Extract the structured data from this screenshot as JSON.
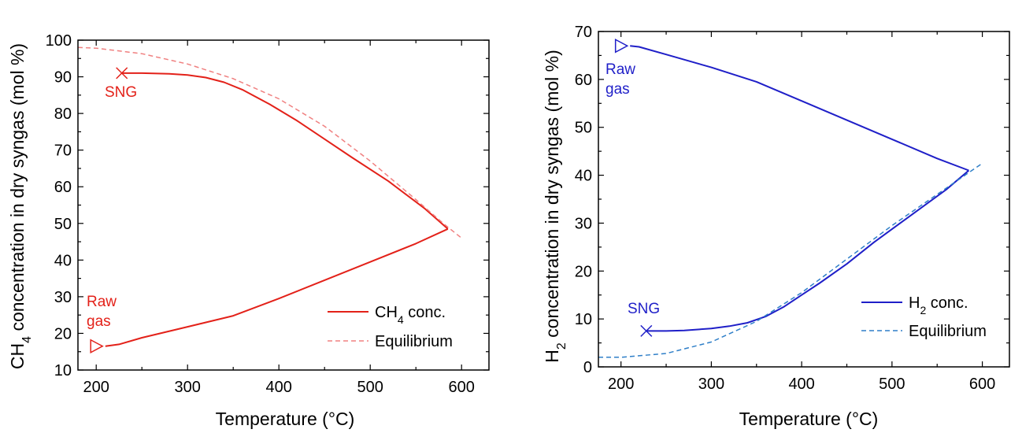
{
  "chart_data": [
    {
      "type": "line",
      "xlabel": "Temperature (°C)",
      "ylabel_main": "CH",
      "ylabel_sub": "4",
      "ylabel_rest": " concentration in dry syngas (mol %)",
      "xlim": [
        180,
        630
      ],
      "ylim": [
        10,
        100
      ],
      "xticks": [
        200,
        300,
        400,
        500,
        600
      ],
      "yticks": [
        10,
        20,
        30,
        40,
        50,
        60,
        70,
        80,
        90,
        100
      ],
      "xtick_labels": [
        "200",
        "300",
        "400",
        "500",
        "600"
      ],
      "ytick_labels": [
        "10",
        "20",
        "30",
        "40",
        "50",
        "60",
        "70",
        "80",
        "90",
        "100"
      ],
      "color": "#e32119",
      "legend_position": "bottom-right",
      "legend": [
        {
          "main": "CH",
          "sub": "4",
          "rest": " conc."
        },
        {
          "main": "Equilibrium",
          "sub": "",
          "rest": ""
        }
      ],
      "series": [
        {
          "style": "solid",
          "x": [
            210,
            225,
            250,
            300,
            350,
            400,
            450,
            500,
            550,
            585
          ],
          "y": [
            16.5,
            17,
            18.8,
            21.8,
            24.8,
            29.5,
            34.5,
            39.5,
            44.5,
            48.5
          ]
        },
        {
          "style": "solid",
          "x": [
            585,
            560,
            520,
            480,
            450,
            420,
            390,
            360,
            340,
            320,
            300,
            280,
            250,
            228
          ],
          "y": [
            48.5,
            54,
            61.5,
            68,
            73,
            78,
            82.5,
            86.5,
            88.5,
            89.8,
            90.5,
            90.8,
            91,
            91
          ]
        },
        {
          "style": "dashed",
          "x": [
            180,
            200,
            250,
            300,
            350,
            400,
            450,
            500,
            550,
            580,
            600
          ],
          "y": [
            98,
            97.8,
            96.3,
            93.5,
            89.5,
            84,
            76.5,
            67,
            56.5,
            50,
            46
          ]
        }
      ],
      "markers": [
        {
          "type": "triangle",
          "x": 200,
          "y": 16.5
        },
        {
          "type": "cross",
          "x": 228,
          "y": 91
        }
      ],
      "annotations": {
        "raw_line1": "Raw",
        "raw_line2": "gas",
        "sng": "SNG"
      }
    },
    {
      "type": "line",
      "xlabel": "Temperature (°C)",
      "ylabel_main": "H",
      "ylabel_sub": "2",
      "ylabel_rest": " concentration in dry syngas (mol %)",
      "xlim": [
        175,
        630
      ],
      "ylim": [
        0,
        70
      ],
      "xticks": [
        200,
        300,
        400,
        500,
        600
      ],
      "yticks": [
        0,
        10,
        20,
        30,
        40,
        50,
        60,
        70
      ],
      "xtick_labels": [
        "200",
        "300",
        "400",
        "500",
        "600"
      ],
      "ytick_labels": [
        "0",
        "10",
        "20",
        "30",
        "40",
        "50",
        "60",
        "70"
      ],
      "color": "#1f1fc8",
      "eq_color": "#2f7fc8",
      "legend_position": "bottom-right",
      "legend": [
        {
          "main": "H",
          "sub": "2",
          "rest": " conc."
        },
        {
          "main": "Equilibrium",
          "sub": "",
          "rest": ""
        }
      ],
      "series": [
        {
          "style": "solid",
          "x": [
            210,
            220,
            250,
            300,
            350,
            400,
            450,
            500,
            550,
            585
          ],
          "y": [
            67,
            66.8,
            65.2,
            62.5,
            59.5,
            55.5,
            51.5,
            47.5,
            43.5,
            41
          ]
        },
        {
          "style": "solid",
          "x": [
            585,
            560,
            520,
            480,
            450,
            420,
            400,
            380,
            360,
            340,
            320,
            300,
            270,
            250,
            228
          ],
          "y": [
            41,
            37,
            31.5,
            26,
            21.5,
            17.5,
            15,
            12.5,
            10.5,
            9.2,
            8.5,
            8,
            7.6,
            7.5,
            7.5
          ]
        },
        {
          "style": "dashed",
          "x": [
            175,
            200,
            250,
            300,
            350,
            400,
            450,
            500,
            550,
            600
          ],
          "y": [
            2,
            2,
            2.8,
            5.2,
            9.5,
            15.5,
            22.5,
            29.5,
            36,
            42.5
          ]
        }
      ],
      "markers": [
        {
          "type": "triangle",
          "x": 200,
          "y": 67
        },
        {
          "type": "cross",
          "x": 228,
          "y": 7.5
        }
      ],
      "annotations": {
        "raw_line1": "Raw",
        "raw_line2": "gas",
        "sng": "SNG"
      }
    }
  ]
}
